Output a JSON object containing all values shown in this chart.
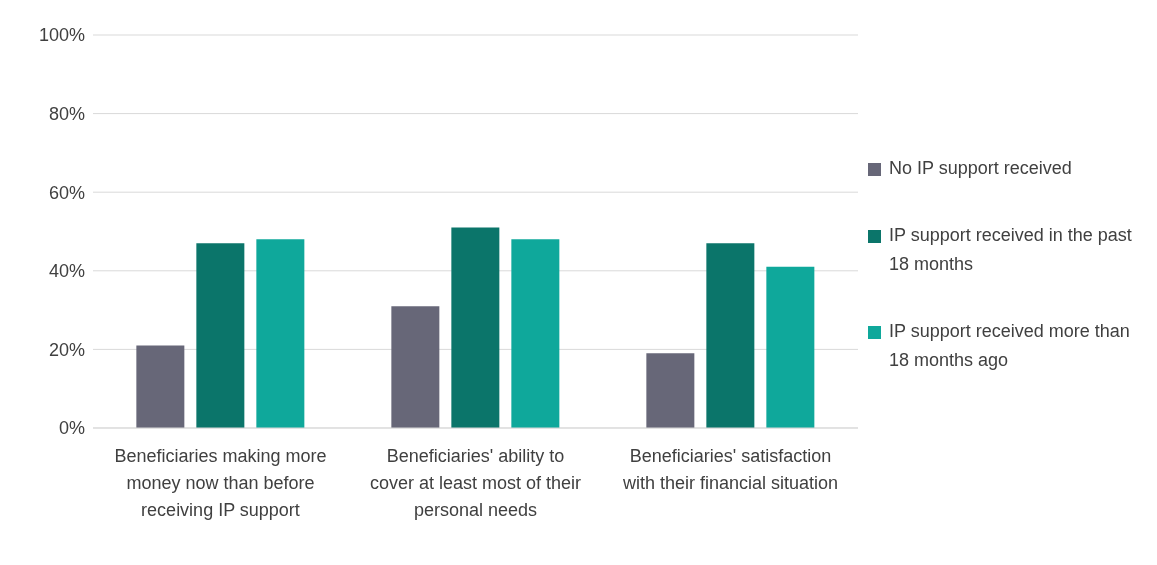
{
  "chart_data": {
    "type": "bar",
    "categories": [
      "Beneficiaries making more money now than before receiving IP support",
      "Beneficiaries' ability to cover at least most of their personal needs",
      "Beneficiaries' satisfaction with their financial situation"
    ],
    "series": [
      {
        "name": "No IP support received",
        "color": "#676778",
        "values": [
          21,
          31,
          19
        ]
      },
      {
        "name": "IP support received in the past 18 months",
        "color": "#0b756a",
        "values": [
          47,
          51,
          47
        ]
      },
      {
        "name": "IP support received more than 18 months ago",
        "color": "#0fa89b",
        "values": [
          48,
          48,
          41
        ]
      }
    ],
    "ylim": [
      0,
      100
    ],
    "yticks": [
      {
        "value": 0,
        "label": "0%"
      },
      {
        "value": 20,
        "label": "20%"
      },
      {
        "value": 40,
        "label": "40%"
      },
      {
        "value": 60,
        "label": "60%"
      },
      {
        "value": 80,
        "label": "80%"
      },
      {
        "value": 100,
        "label": "100%"
      }
    ],
    "grid": "y",
    "legend": "right"
  }
}
